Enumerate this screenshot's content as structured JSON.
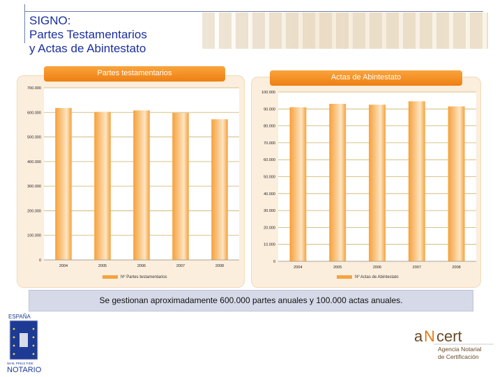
{
  "header": {
    "title_lines": [
      "SIGNO:",
      "Partes Testamentarios",
      "y Actas de Abintestato"
    ]
  },
  "chart_data": [
    {
      "type": "bar",
      "title": "Partes testamentarios",
      "categories": [
        "2004",
        "2005",
        "2006",
        "2007",
        "2008"
      ],
      "series": [
        {
          "name": "Nº Partes testamentarios",
          "values": [
            618000,
            602000,
            608000,
            598000,
            572000
          ]
        }
      ],
      "ylim": [
        0,
        700000
      ],
      "yticks": [
        "0",
        "100.000",
        "200.000",
        "300.000",
        "400.000",
        "500.000",
        "600.000",
        "700.000"
      ],
      "ytick_values": [
        0,
        100000,
        200000,
        300000,
        400000,
        500000,
        600000,
        700000
      ],
      "grid": true,
      "legend": "bottom",
      "colors": {
        "bar": "#f6a03a",
        "bar_light": "#fde5c2",
        "grid": "#c9b066"
      }
    },
    {
      "type": "bar",
      "title": "Actas de Abintestato",
      "categories": [
        "2004",
        "2005",
        "2006",
        "2007",
        "2008"
      ],
      "series": [
        {
          "name": "Nº Actas de Abintestato",
          "values": [
            91000,
            93000,
            92500,
            94500,
            91500
          ]
        }
      ],
      "ylim": [
        0,
        100000
      ],
      "yticks": [
        "0",
        "10.000",
        "20.000",
        "30.000",
        "40.000",
        "50.000",
        "60.000",
        "70.000",
        "80.000",
        "90.000",
        "100.000"
      ],
      "ytick_values": [
        0,
        10000,
        20000,
        30000,
        40000,
        50000,
        60000,
        70000,
        80000,
        90000,
        100000
      ],
      "grid": true,
      "legend": "bottom",
      "colors": {
        "bar": "#f6a03a",
        "bar_light": "#fde5c2",
        "grid": "#c9b066"
      }
    }
  ],
  "note": {
    "text_prefix": "Se gestionan aproximadamente ",
    "text_bold": "600.000 partes anuales y 100.000 actas anuales",
    "text_suffix": "."
  },
  "logos": {
    "left": {
      "top_text": "ESPAÑA",
      "motto": "NIHIL PRIUS FIDE",
      "bottom_text": "NOTARIO"
    },
    "right": {
      "mark_a": "a",
      "mark_n": "N",
      "mark_rest": "cert",
      "line1": "Agencia Notarial",
      "line2": "de Certificación"
    }
  }
}
